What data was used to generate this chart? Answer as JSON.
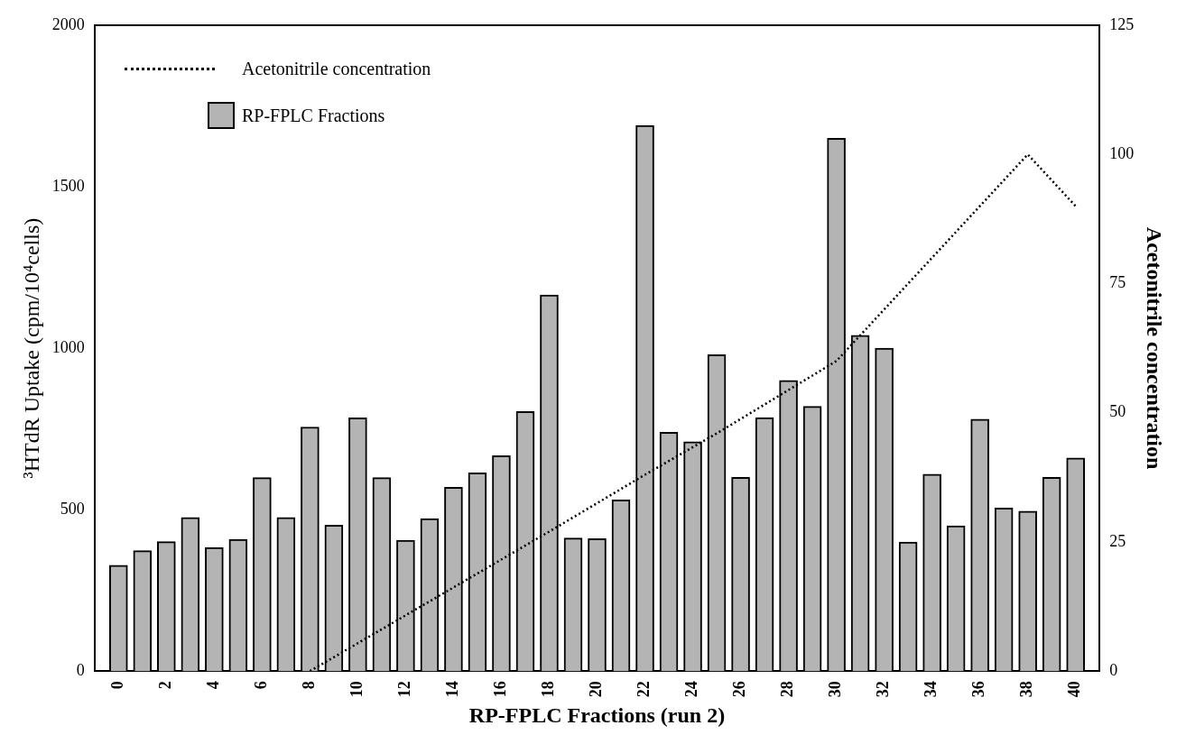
{
  "chart_data": {
    "type": "bar",
    "xlabel": "RP-FPLC Fractions (run 2)",
    "ylabel": "³HTdR Uptake (cpm/10⁴cells)",
    "y2label": "Acetonitrile concentration",
    "x": [
      0,
      1,
      2,
      3,
      4,
      5,
      6,
      7,
      8,
      9,
      10,
      11,
      12,
      13,
      14,
      15,
      16,
      17,
      18,
      19,
      20,
      21,
      22,
      23,
      24,
      25,
      26,
      27,
      28,
      29,
      30,
      31,
      32,
      33,
      34,
      35,
      36,
      37,
      38,
      39,
      40
    ],
    "xlim": [
      -1,
      41
    ],
    "xticks": [
      0,
      2,
      4,
      6,
      8,
      10,
      12,
      14,
      16,
      18,
      20,
      22,
      24,
      26,
      28,
      30,
      32,
      34,
      36,
      38,
      40
    ],
    "ylim": [
      0,
      2000
    ],
    "yticks": [
      0,
      500,
      1000,
      1500,
      2000
    ],
    "y2lim": [
      0,
      125
    ],
    "y2ticks": [
      0,
      25,
      50,
      75,
      100,
      125
    ],
    "grid": false,
    "legend": "top left",
    "series": [
      {
        "name": "RP-FPLC Fractions",
        "color": "#b4b4b4",
        "values": [
          328,
          373,
          401,
          476,
          383,
          408,
          599,
          476,
          756,
          452,
          784,
          599,
          405,
          472,
          569,
          614,
          667,
          804,
          1165,
          412,
          410,
          530,
          1690,
          740,
          710,
          980,
          600,
          785,
          900,
          820,
          1650,
          1040,
          1000,
          400,
          610,
          450,
          780,
          505,
          495,
          600,
          660
        ]
      },
      {
        "name": "Acetonitrile concentration",
        "type": "line",
        "axis": "y2",
        "color": "#000000",
        "line_style": "dotted",
        "marker": "none",
        "x": [
          8,
          18,
          22,
          25,
          30,
          38,
          40
        ],
        "values": [
          0,
          27,
          38,
          46,
          60,
          100,
          90
        ]
      }
    ]
  }
}
